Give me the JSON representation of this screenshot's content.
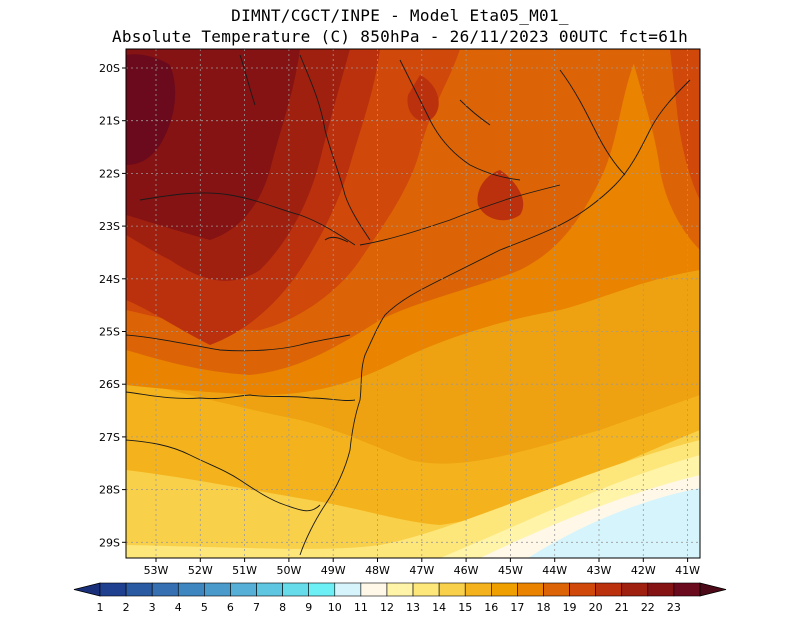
{
  "header": {
    "title_line_1": "DIMNT/CGCT/INPE -  Model Eta05_M01_",
    "title_line_2": "Absolute Temperature (C) 850hPa -  26/11/2023 00UTC fct=61h"
  },
  "map": {
    "lat_labels": [
      "20S",
      "21S",
      "22S",
      "23S",
      "24S",
      "25S",
      "26S",
      "27S",
      "28S",
      "29S"
    ],
    "lon_labels": [
      "53W",
      "52W",
      "51W",
      "50W",
      "49W",
      "48W",
      "47W",
      "46W",
      "45W",
      "44W",
      "43W",
      "42W",
      "41W"
    ]
  },
  "colorbar": {
    "labels": [
      "1",
      "2",
      "3",
      "4",
      "5",
      "6",
      "7",
      "8",
      "9",
      "10",
      "11",
      "12",
      "13",
      "14",
      "15",
      "16",
      "17",
      "18",
      "19",
      "20",
      "21",
      "22",
      "23"
    ],
    "colors": [
      "#1f3f8f",
      "#2a5aa2",
      "#3670b2",
      "#3e86c0",
      "#4a9acc",
      "#55afd6",
      "#5ec6e0",
      "#66dceb",
      "#6cf0f6",
      "#d6f4fb",
      "#fff8e8",
      "#fff4a8",
      "#fde67a",
      "#f9d04a",
      "#f4b31c",
      "#efa000",
      "#e98300",
      "#dd6406",
      "#d0480a",
      "#bb310d",
      "#a02010",
      "#851313",
      "#6b0a1c"
    ],
    "low_arrow_color": "#1a2f7a",
    "high_arrow_color": "#4c0a18"
  },
  "style": {
    "map_background": "#eea211",
    "coast_color": "#1a1a1a",
    "grid_color": "#9a9a9a"
  }
}
